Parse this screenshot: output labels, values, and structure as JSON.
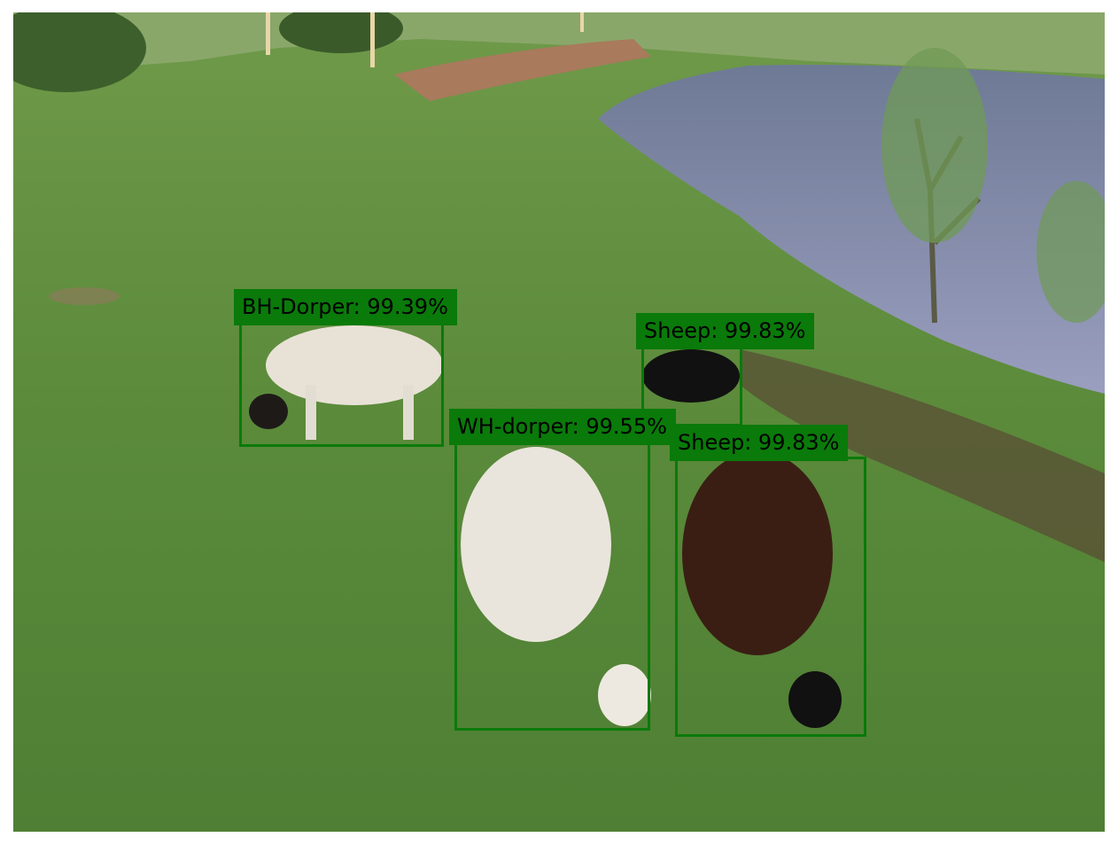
{
  "detections": [
    {
      "label": "BH-Dorper: 99.39%"
    },
    {
      "label": "Sheep: 99.83%"
    },
    {
      "label": "WH-dorper: 99.55%"
    },
    {
      "label": "Sheep: 99.83%"
    }
  ],
  "colors": {
    "box_stroke": "#0a7a0a",
    "label_background": "#0a7a0a",
    "label_text": "#000000"
  }
}
